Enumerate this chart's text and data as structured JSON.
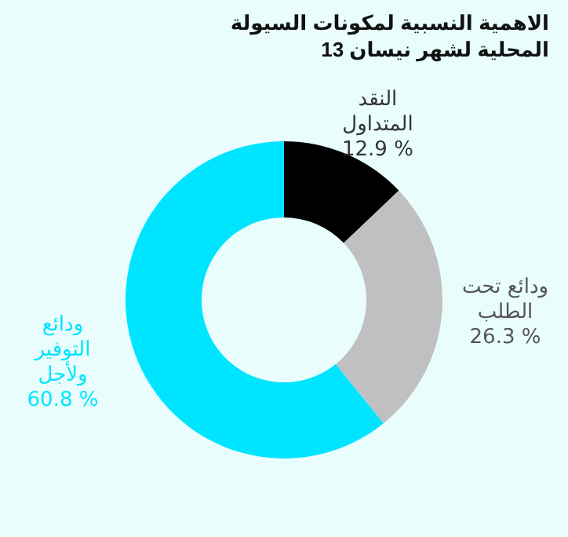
{
  "chart_data": {
    "type": "donut",
    "title": "الاهمية النسبية لمكونات السيولة المحلية لشهر نيسان 13",
    "categories": [
      "النقد المتداول",
      "ودائع تحت الطلب",
      "ودائع التوفير ولأجل"
    ],
    "values": [
      12.9,
      26.3,
      60.8
    ],
    "colors": [
      "#000000",
      "#c0c0c0",
      "#00e5ff"
    ],
    "value_labels": [
      "12.9 %",
      "26.3 %",
      "60.8 %"
    ],
    "legend": false
  }
}
